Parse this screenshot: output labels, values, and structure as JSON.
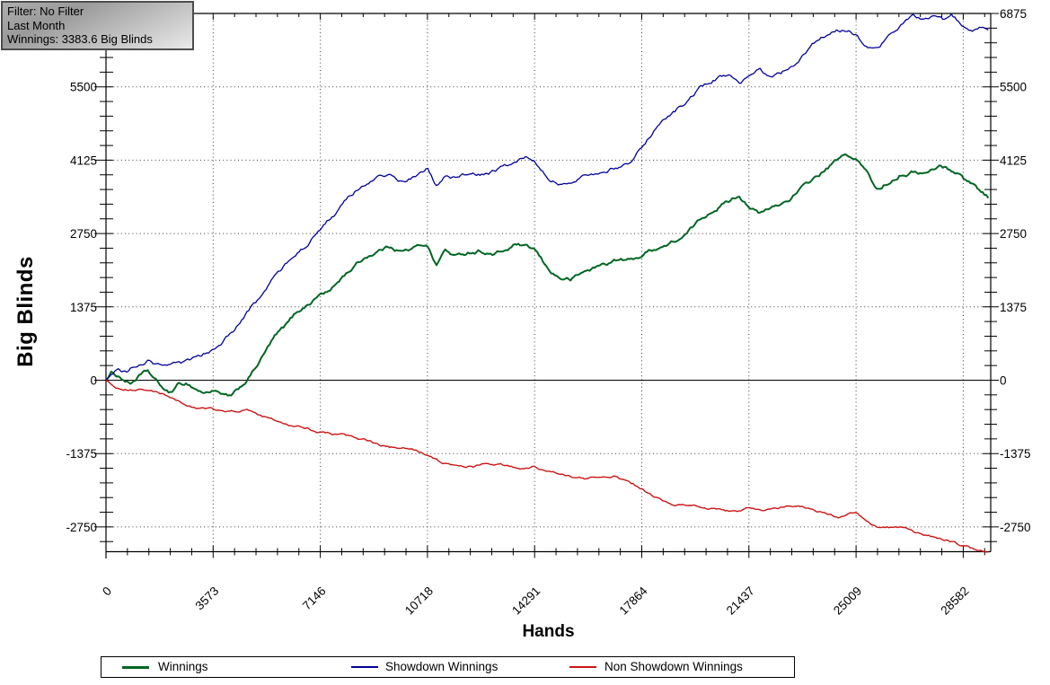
{
  "info_box": {
    "line1": "Filter: No Filter",
    "line2": "Last Month",
    "line3": "Winnings: 3383.6 Big Blinds"
  },
  "colors": {
    "winnings": "#006622",
    "showdown": "#00009b",
    "non_showdown": "#cc1414",
    "grid": "#3a3a3a",
    "axis": "#000000",
    "infobox_border": "#4d4d4d"
  },
  "chart_data": {
    "type": "line",
    "title": "",
    "xlabel": "Hands",
    "ylabel": "Big Blinds",
    "x_ticks": [
      0,
      3573,
      7146,
      10718,
      14291,
      17864,
      21437,
      25009,
      28582
    ],
    "y_ticks": [
      6875,
      5500,
      4125,
      2750,
      1375,
      0,
      -1375,
      -2750
    ],
    "x_minor_step": 714.55,
    "y_minor_step": 275,
    "xlim": [
      0,
      29490
    ],
    "ylim": [
      -3216,
      6875
    ],
    "grid": true,
    "zero_line": true,
    "legend_position": "bottom",
    "series": [
      {
        "name": "Winnings",
        "color": "#006622",
        "width": 2,
        "points": [
          [
            0,
            0
          ],
          [
            200,
            140
          ],
          [
            500,
            60
          ],
          [
            800,
            -60
          ],
          [
            1100,
            80
          ],
          [
            1400,
            150
          ],
          [
            1700,
            -60
          ],
          [
            2100,
            -270
          ],
          [
            2400,
            -110
          ],
          [
            2700,
            -60
          ],
          [
            3000,
            -160
          ],
          [
            3300,
            -240
          ],
          [
            3600,
            -170
          ],
          [
            3900,
            -300
          ],
          [
            4200,
            -330
          ],
          [
            4500,
            -150
          ],
          [
            4800,
            60
          ],
          [
            5200,
            420
          ],
          [
            5600,
            780
          ],
          [
            6000,
            1000
          ],
          [
            6400,
            1280
          ],
          [
            6800,
            1450
          ],
          [
            7146,
            1620
          ],
          [
            7500,
            1680
          ],
          [
            7900,
            1950
          ],
          [
            8300,
            2150
          ],
          [
            8700,
            2330
          ],
          [
            9100,
            2440
          ],
          [
            9500,
            2520
          ],
          [
            9900,
            2430
          ],
          [
            10300,
            2480
          ],
          [
            10718,
            2560
          ],
          [
            11000,
            2160
          ],
          [
            11300,
            2440
          ],
          [
            11700,
            2310
          ],
          [
            12100,
            2400
          ],
          [
            12500,
            2440
          ],
          [
            12900,
            2360
          ],
          [
            13300,
            2420
          ],
          [
            13700,
            2540
          ],
          [
            14000,
            2460
          ],
          [
            14291,
            2420
          ],
          [
            14700,
            2080
          ],
          [
            15100,
            1920
          ],
          [
            15500,
            1880
          ],
          [
            16000,
            2040
          ],
          [
            16500,
            2150
          ],
          [
            17000,
            2250
          ],
          [
            17500,
            2240
          ],
          [
            17864,
            2340
          ],
          [
            18300,
            2480
          ],
          [
            18800,
            2560
          ],
          [
            19300,
            2700
          ],
          [
            19800,
            2980
          ],
          [
            20300,
            3240
          ],
          [
            20800,
            3380
          ],
          [
            21100,
            3480
          ],
          [
            21437,
            3300
          ],
          [
            21800,
            3120
          ],
          [
            22200,
            3220
          ],
          [
            22600,
            3320
          ],
          [
            23000,
            3500
          ],
          [
            23500,
            3720
          ],
          [
            24000,
            3940
          ],
          [
            24400,
            4120
          ],
          [
            24700,
            4200
          ],
          [
            25009,
            4120
          ],
          [
            25300,
            3940
          ],
          [
            25700,
            3560
          ],
          [
            26100,
            3720
          ],
          [
            26500,
            3900
          ],
          [
            27000,
            3930
          ],
          [
            27400,
            3890
          ],
          [
            27800,
            4020
          ],
          [
            28100,
            3960
          ],
          [
            28400,
            3900
          ],
          [
            28582,
            3790
          ],
          [
            28900,
            3680
          ],
          [
            29150,
            3560
          ],
          [
            29450,
            3440
          ]
        ]
      },
      {
        "name": "Showdown Winnings",
        "color": "#00009b",
        "width": 1.3,
        "points": [
          [
            0,
            0
          ],
          [
            150,
            130
          ],
          [
            400,
            250
          ],
          [
            700,
            170
          ],
          [
            1000,
            290
          ],
          [
            1400,
            380
          ],
          [
            1700,
            290
          ],
          [
            2100,
            340
          ],
          [
            2500,
            280
          ],
          [
            2900,
            360
          ],
          [
            3200,
            420
          ],
          [
            3573,
            580
          ],
          [
            3900,
            750
          ],
          [
            4300,
            950
          ],
          [
            4700,
            1250
          ],
          [
            5100,
            1500
          ],
          [
            5500,
            1850
          ],
          [
            5900,
            2100
          ],
          [
            6300,
            2380
          ],
          [
            6700,
            2560
          ],
          [
            7146,
            2820
          ],
          [
            7500,
            3050
          ],
          [
            7900,
            3280
          ],
          [
            8300,
            3520
          ],
          [
            8700,
            3680
          ],
          [
            9100,
            3800
          ],
          [
            9500,
            3840
          ],
          [
            9900,
            3720
          ],
          [
            10300,
            3810
          ],
          [
            10718,
            3960
          ],
          [
            11000,
            3640
          ],
          [
            11300,
            3860
          ],
          [
            11700,
            3780
          ],
          [
            12100,
            3850
          ],
          [
            12500,
            3820
          ],
          [
            12900,
            3920
          ],
          [
            13300,
            3980
          ],
          [
            13700,
            4080
          ],
          [
            14000,
            4160
          ],
          [
            14291,
            4140
          ],
          [
            14700,
            3860
          ],
          [
            15100,
            3720
          ],
          [
            15500,
            3640
          ],
          [
            16000,
            3860
          ],
          [
            16500,
            3940
          ],
          [
            17000,
            4010
          ],
          [
            17500,
            4130
          ],
          [
            17864,
            4360
          ],
          [
            18300,
            4700
          ],
          [
            18800,
            4980
          ],
          [
            19300,
            5180
          ],
          [
            19800,
            5450
          ],
          [
            20300,
            5640
          ],
          [
            20800,
            5730
          ],
          [
            21100,
            5520
          ],
          [
            21437,
            5650
          ],
          [
            21800,
            5840
          ],
          [
            22100,
            5660
          ],
          [
            22500,
            5740
          ],
          [
            23000,
            5960
          ],
          [
            23500,
            6260
          ],
          [
            24000,
            6480
          ],
          [
            24500,
            6560
          ],
          [
            24800,
            6540
          ],
          [
            25009,
            6480
          ],
          [
            25300,
            6260
          ],
          [
            25700,
            6200
          ],
          [
            26100,
            6440
          ],
          [
            26500,
            6650
          ],
          [
            26900,
            6830
          ],
          [
            27300,
            6740
          ],
          [
            27600,
            6860
          ],
          [
            27900,
            6760
          ],
          [
            28200,
            6850
          ],
          [
            28582,
            6640
          ],
          [
            28900,
            6600
          ],
          [
            29150,
            6650
          ],
          [
            29450,
            6630
          ]
        ]
      },
      {
        "name": "Non Showdown Winnings",
        "color": "#cc1414",
        "width": 1.4,
        "points": [
          [
            0,
            0
          ],
          [
            300,
            -120
          ],
          [
            700,
            -150
          ],
          [
            1100,
            -170
          ],
          [
            1500,
            -190
          ],
          [
            1900,
            -280
          ],
          [
            2300,
            -380
          ],
          [
            2700,
            -460
          ],
          [
            3100,
            -520
          ],
          [
            3573,
            -560
          ],
          [
            3900,
            -620
          ],
          [
            4300,
            -590
          ],
          [
            4700,
            -570
          ],
          [
            5100,
            -660
          ],
          [
            5500,
            -720
          ],
          [
            5900,
            -790
          ],
          [
            6300,
            -840
          ],
          [
            6700,
            -890
          ],
          [
            7146,
            -960
          ],
          [
            7500,
            -1010
          ],
          [
            7900,
            -1040
          ],
          [
            8300,
            -1100
          ],
          [
            8700,
            -1150
          ],
          [
            9100,
            -1230
          ],
          [
            9500,
            -1270
          ],
          [
            9900,
            -1300
          ],
          [
            10300,
            -1330
          ],
          [
            10718,
            -1390
          ],
          [
            11100,
            -1520
          ],
          [
            11500,
            -1590
          ],
          [
            11900,
            -1640
          ],
          [
            12300,
            -1620
          ],
          [
            12700,
            -1530
          ],
          [
            13100,
            -1560
          ],
          [
            13500,
            -1630
          ],
          [
            13900,
            -1660
          ],
          [
            14291,
            -1630
          ],
          [
            14700,
            -1700
          ],
          [
            15100,
            -1760
          ],
          [
            15500,
            -1810
          ],
          [
            16000,
            -1850
          ],
          [
            16500,
            -1830
          ],
          [
            17000,
            -1800
          ],
          [
            17400,
            -1900
          ],
          [
            17864,
            -2030
          ],
          [
            18200,
            -2180
          ],
          [
            18600,
            -2280
          ],
          [
            19000,
            -2330
          ],
          [
            19500,
            -2360
          ],
          [
            20000,
            -2390
          ],
          [
            20500,
            -2420
          ],
          [
            20900,
            -2470
          ],
          [
            21437,
            -2410
          ],
          [
            21900,
            -2430
          ],
          [
            22400,
            -2390
          ],
          [
            22900,
            -2360
          ],
          [
            23400,
            -2400
          ],
          [
            23900,
            -2480
          ],
          [
            24400,
            -2550
          ],
          [
            24700,
            -2520
          ],
          [
            25009,
            -2490
          ],
          [
            25400,
            -2660
          ],
          [
            25800,
            -2790
          ],
          [
            26200,
            -2780
          ],
          [
            26600,
            -2760
          ],
          [
            27000,
            -2860
          ],
          [
            27400,
            -2930
          ],
          [
            27800,
            -2980
          ],
          [
            28100,
            -3010
          ],
          [
            28582,
            -3110
          ],
          [
            28900,
            -3160
          ],
          [
            29150,
            -3190
          ],
          [
            29450,
            -3230
          ]
        ]
      }
    ]
  }
}
